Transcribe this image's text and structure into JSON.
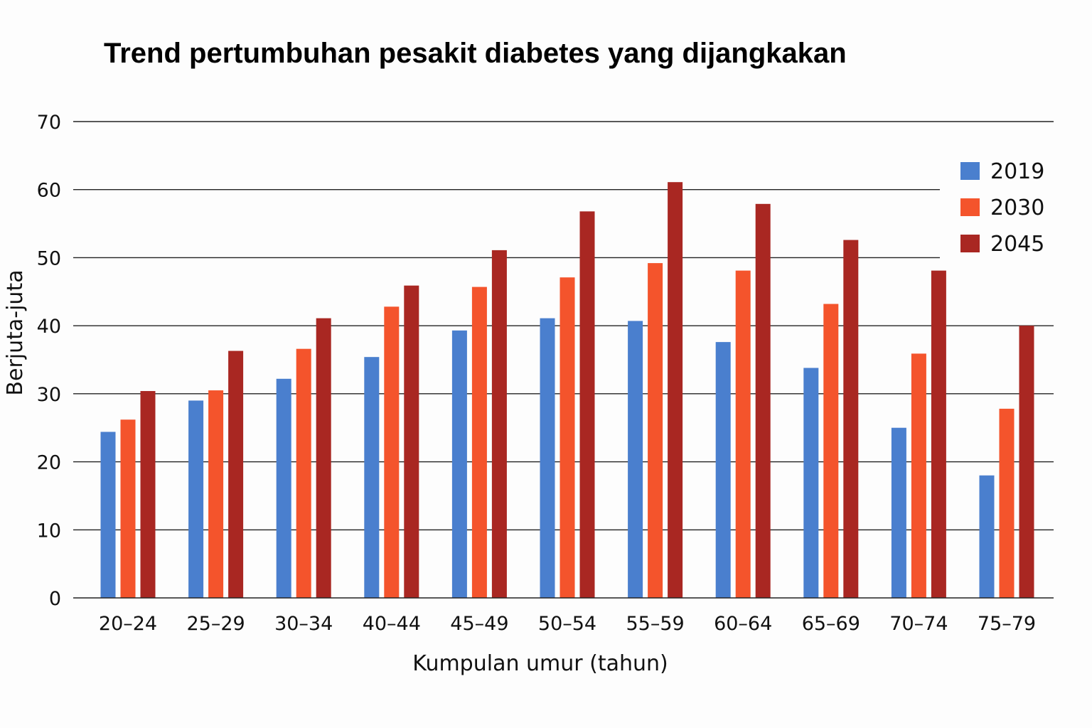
{
  "chart_data": {
    "type": "bar",
    "title": "Trend pertumbuhan pesakit diabetes yang dijangkakan",
    "xlabel": "Kumpulan umur (tahun)",
    "ylabel": "Berjuta-juta",
    "ylim": [
      0,
      70
    ],
    "yticks": [
      0,
      10,
      20,
      30,
      40,
      50,
      60,
      70
    ],
    "grid": true,
    "legend_position": "top-right",
    "categories": [
      "20–24",
      "25–29",
      "30–34",
      "40–44",
      "45–49",
      "50–54",
      "55–59",
      "60–64",
      "65–69",
      "70–74",
      "75–79"
    ],
    "series": [
      {
        "name": "2019",
        "color": "#4a7fce",
        "values": [
          24.4,
          29.0,
          32.2,
          35.4,
          39.3,
          41.1,
          40.7,
          37.6,
          33.8,
          25.0,
          18.0
        ]
      },
      {
        "name": "2030",
        "color": "#f4542c",
        "values": [
          26.2,
          30.5,
          36.6,
          42.8,
          45.7,
          47.1,
          49.2,
          48.1,
          43.2,
          35.9,
          27.8
        ]
      },
      {
        "name": "2045",
        "color": "#a92722",
        "values": [
          30.4,
          36.3,
          41.1,
          45.9,
          51.1,
          56.8,
          61.1,
          57.9,
          52.6,
          48.1,
          40.0
        ]
      }
    ]
  }
}
